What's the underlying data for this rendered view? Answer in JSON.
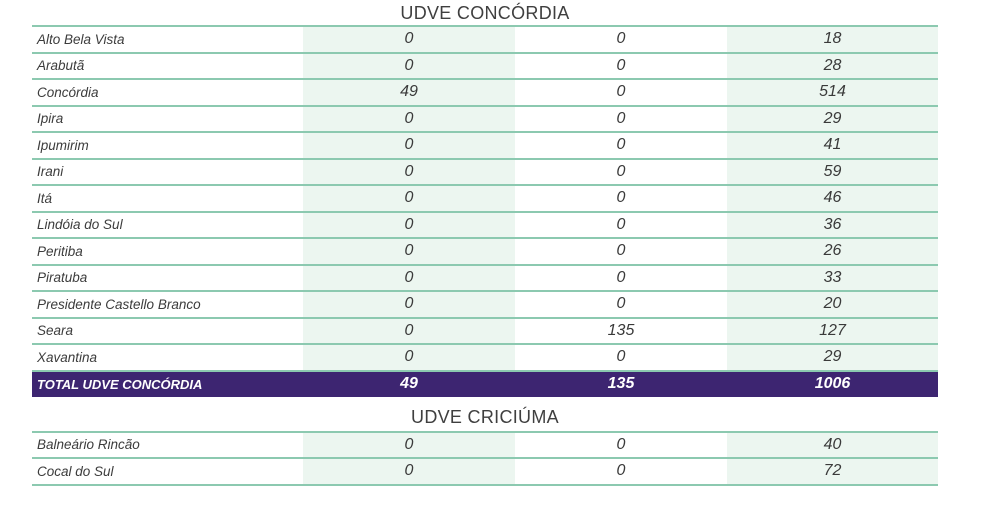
{
  "section1": {
    "title": "UDVE CONCÓRDIA",
    "rows": [
      {
        "name": "Alto Bela Vista",
        "v1": "0",
        "v2": "0",
        "v3": "18"
      },
      {
        "name": "Arabutã",
        "v1": "0",
        "v2": "0",
        "v3": "28"
      },
      {
        "name": "Concórdia",
        "v1": "49",
        "v2": "0",
        "v3": "514"
      },
      {
        "name": "Ipira",
        "v1": "0",
        "v2": "0",
        "v3": "29"
      },
      {
        "name": "Ipumirim",
        "v1": "0",
        "v2": "0",
        "v3": "41"
      },
      {
        "name": "Irani",
        "v1": "0",
        "v2": "0",
        "v3": "59"
      },
      {
        "name": "Itá",
        "v1": "0",
        "v2": "0",
        "v3": "46"
      },
      {
        "name": "Lindóia do Sul",
        "v1": "0",
        "v2": "0",
        "v3": "36"
      },
      {
        "name": "Peritiba",
        "v1": "0",
        "v2": "0",
        "v3": "26"
      },
      {
        "name": "Piratuba",
        "v1": "0",
        "v2": "0",
        "v3": "33"
      },
      {
        "name": "Presidente Castello Branco",
        "v1": "0",
        "v2": "0",
        "v3": "20"
      },
      {
        "name": "Seara",
        "v1": "0",
        "v2": "135",
        "v3": "127"
      },
      {
        "name": "Xavantina",
        "v1": "0",
        "v2": "0",
        "v3": "29"
      }
    ],
    "total": {
      "name": "TOTAL UDVE CONCÓRDIA",
      "v1": "49",
      "v2": "135",
      "v3": "1006"
    }
  },
  "section2": {
    "title": "UDVE CRICIÚMA",
    "rows": [
      {
        "name": "Balneário Rincão",
        "v1": "0",
        "v2": "0",
        "v3": "40"
      },
      {
        "name": "Cocal do Sul",
        "v1": "0",
        "v2": "0",
        "v3": "72"
      }
    ]
  },
  "colors": {
    "accent_line": "#8cc9b0",
    "shade": "#ecf6f0",
    "total_bg": "#3d2571"
  }
}
